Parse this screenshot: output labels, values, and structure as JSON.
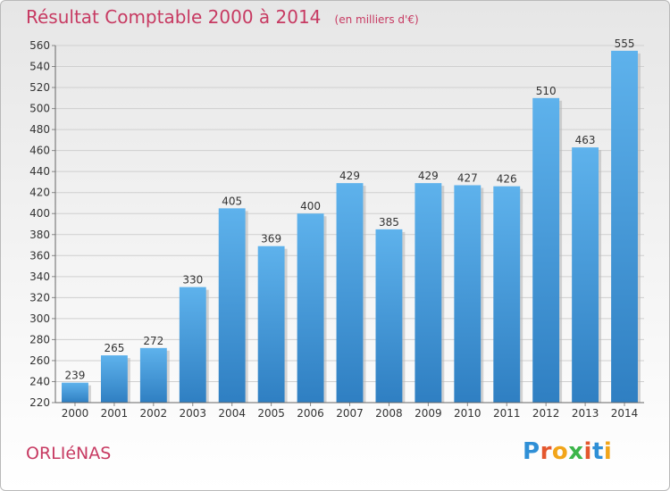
{
  "header": {
    "title": "Résultat Comptable 2000 à 2014",
    "unit": "(en milliers d'€)"
  },
  "commune": "ORLIéNAS",
  "brand": {
    "letters": [
      "P",
      "r",
      "o",
      "x",
      "i",
      "t",
      "i"
    ],
    "colors": [
      "#2f8fd6",
      "#e4572e",
      "#f2a51a",
      "#3cb54a",
      "#e4572e",
      "#2f8fd6",
      "#f2a51a"
    ]
  },
  "chart_data": {
    "type": "bar",
    "title": "Résultat Comptable 2000 à 2014",
    "categories": [
      "2000",
      "2001",
      "2002",
      "2003",
      "2004",
      "2005",
      "2006",
      "2007",
      "2008",
      "2009",
      "2010",
      "2011",
      "2012",
      "2013",
      "2014"
    ],
    "values": [
      239,
      265,
      272,
      330,
      405,
      369,
      400,
      429,
      385,
      429,
      427,
      426,
      510,
      463,
      555
    ],
    "ylim": [
      220,
      560
    ],
    "yticks": [
      220,
      240,
      260,
      280,
      300,
      320,
      340,
      360,
      380,
      400,
      420,
      440,
      460,
      480,
      500,
      520,
      540,
      560
    ],
    "grid": true,
    "bar_color": "#4a9ee0"
  }
}
